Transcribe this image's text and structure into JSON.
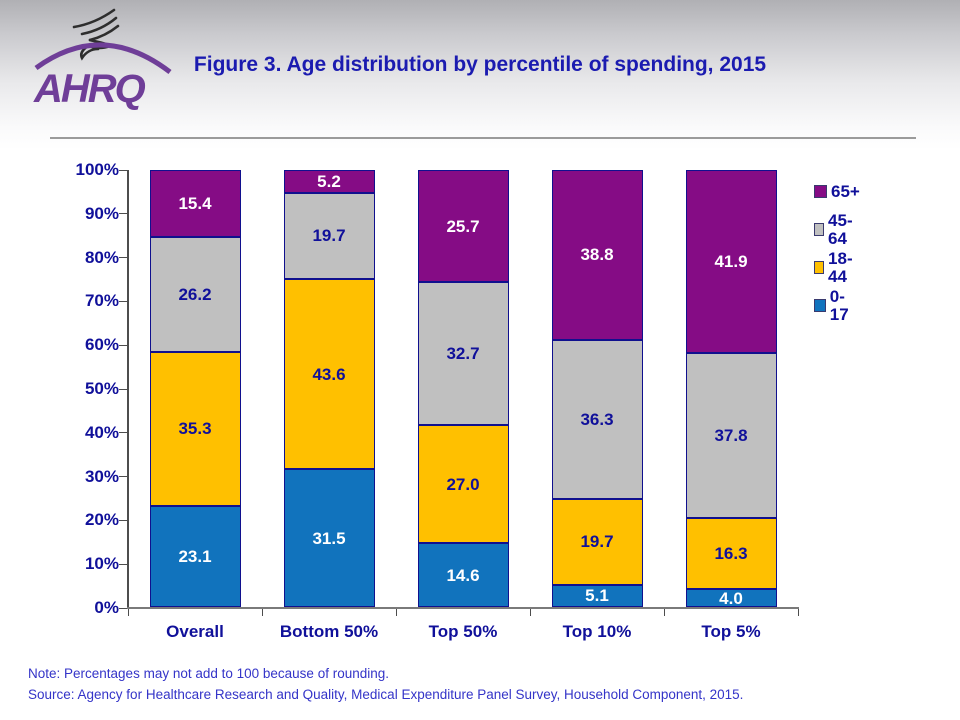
{
  "header": {
    "title": "Figure 3. Age distribution by percentile of spending, 2015",
    "logo_text": "AHRQ"
  },
  "chart_data": {
    "type": "bar",
    "stacked": true,
    "title": "Figure 3. Age distribution by percentile of spending, 2015",
    "categories": [
      "Overall",
      "Bottom 50%",
      "Top 50%",
      "Top 10%",
      "Top 5%"
    ],
    "series": [
      {
        "name": "0-17",
        "color": "#1173bd",
        "label_color": "#ffffff",
        "values": [
          23.1,
          31.5,
          14.6,
          5.1,
          4.0
        ]
      },
      {
        "name": "18-44",
        "color": "#ffc000",
        "label_color": "#10109a",
        "values": [
          35.3,
          43.6,
          27.0,
          19.7,
          16.3
        ]
      },
      {
        "name": "45-64",
        "color": "#c0c0c0",
        "label_color": "#10109a",
        "values": [
          26.2,
          19.7,
          32.7,
          36.3,
          37.8
        ]
      },
      {
        "name": "65+",
        "color": "#850c85",
        "label_color": "#ffffff",
        "values": [
          15.4,
          5.2,
          25.7,
          38.8,
          41.9
        ]
      }
    ],
    "legend_order": [
      "65+",
      "45-64",
      "18-44",
      "0-17"
    ],
    "legend_position": "right",
    "xlabel": "",
    "ylabel": "",
    "ylim": [
      0,
      100
    ],
    "y_ticks": [
      "0%",
      "10%",
      "20%",
      "30%",
      "40%",
      "50%",
      "60%",
      "70%",
      "80%",
      "90%",
      "100%"
    ],
    "grid": false,
    "value_label_format": "one_decimal"
  },
  "footer": {
    "note": "Note: Percentages may not add to 100 because of rounding.",
    "source": "Source: Agency for Healthcare Research and Quality, Medical Expenditure Panel Survey, Household Component, 2015."
  }
}
